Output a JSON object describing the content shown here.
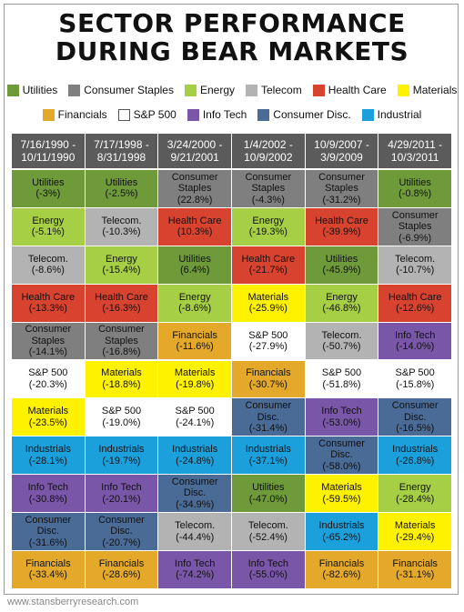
{
  "title_line1": "SECTOR PERFORMANCE",
  "title_line2": "DURING BEAR MARKETS",
  "footer": "www.stansberryresearch.com",
  "sectors": {
    "Utilities": "#6e9a3a",
    "Consumer Staples": "#7f7f7f",
    "Energy": "#a6cf45",
    "Telecom": "#b3b3b3",
    "Health Care": "#d8432f",
    "Materials": "#fff200",
    "Financials": "#e4a92a",
    "S&P 500": "#ffffff",
    "Info Tech": "#7a56a8",
    "Consumer Disc.": "#4a6b96",
    "Industrial": "#1ba0dc"
  },
  "legend_rows": [
    [
      "Utilities",
      "Consumer Staples",
      "Energy",
      "Telecom",
      "Health Care",
      "Materials"
    ],
    [
      "Financials",
      "S&P 500",
      "Info Tech",
      "Consumer Disc.",
      "Industrial"
    ]
  ],
  "chart_data": {
    "type": "table",
    "title": "SECTOR PERFORMANCE DURING BEAR MARKETS",
    "periods": [
      [
        "7/16/1990 -",
        "10/11/1990"
      ],
      [
        "7/17/1998 -",
        "8/31/1998"
      ],
      [
        "3/24/2000 -",
        "9/21/2001"
      ],
      [
        "1/4/2002 -",
        "10/9/2002"
      ],
      [
        "10/9/2007 -",
        "3/9/2009"
      ],
      [
        "4/29/2011 -",
        "10/3/2011"
      ]
    ],
    "columns": [
      [
        {
          "label": [
            "Utilities"
          ],
          "sector": "Utilities",
          "value": "(-3%)"
        },
        {
          "label": [
            "Energy"
          ],
          "sector": "Energy",
          "value": "(-5.1%)"
        },
        {
          "label": [
            "Telecom."
          ],
          "sector": "Telecom",
          "value": "(-8.6%)"
        },
        {
          "label": [
            "Health Care"
          ],
          "sector": "Health Care",
          "value": "(-13.3%)"
        },
        {
          "label": [
            "Consumer",
            "Staples"
          ],
          "sector": "Consumer Staples",
          "value": "(-14.1%)"
        },
        {
          "label": [
            "S&P 500"
          ],
          "sector": "S&P 500",
          "value": "(-20.3%)"
        },
        {
          "label": [
            "Materials"
          ],
          "sector": "Materials",
          "value": "(-23.5%)"
        },
        {
          "label": [
            "Industrials"
          ],
          "sector": "Industrial",
          "value": "(-28.1%)"
        },
        {
          "label": [
            "Info Tech"
          ],
          "sector": "Info Tech",
          "value": "(-30.8%)"
        },
        {
          "label": [
            "Consumer",
            "Disc."
          ],
          "sector": "Consumer Disc.",
          "value": "(-31.6%)"
        },
        {
          "label": [
            "Financials"
          ],
          "sector": "Financials",
          "value": "(-33.4%)"
        }
      ],
      [
        {
          "label": [
            "Utilities"
          ],
          "sector": "Utilities",
          "value": "(-2.5%)"
        },
        {
          "label": [
            "Telecom."
          ],
          "sector": "Telecom",
          "value": "(-10.3%)"
        },
        {
          "label": [
            "Energy"
          ],
          "sector": "Energy",
          "value": "(-15.4%)"
        },
        {
          "label": [
            "Health Care"
          ],
          "sector": "Health Care",
          "value": "(-16.3%)"
        },
        {
          "label": [
            "Consumer",
            "Staples"
          ],
          "sector": "Consumer Staples",
          "value": "(-16.8%)"
        },
        {
          "label": [
            "Materials"
          ],
          "sector": "Materials",
          "value": "(-18.8%)"
        },
        {
          "label": [
            "S&P 500"
          ],
          "sector": "S&P 500",
          "value": "(-19.0%)"
        },
        {
          "label": [
            "Industrials"
          ],
          "sector": "Industrial",
          "value": "(-19.7%)"
        },
        {
          "label": [
            "Info Tech"
          ],
          "sector": "Info Tech",
          "value": "(-20.1%)"
        },
        {
          "label": [
            "Consumer",
            "Disc."
          ],
          "sector": "Consumer Disc.",
          "value": "(-20.7%)"
        },
        {
          "label": [
            "Financials"
          ],
          "sector": "Financials",
          "value": "(-28.6%)"
        }
      ],
      [
        {
          "label": [
            "Consumer",
            "Staples"
          ],
          "sector": "Consumer Staples",
          "value": "(22.8%)"
        },
        {
          "label": [
            "Health Care"
          ],
          "sector": "Health Care",
          "value": "(10.3%)"
        },
        {
          "label": [
            "Utilities"
          ],
          "sector": "Utilities",
          "value": "(6.4%)"
        },
        {
          "label": [
            "Energy"
          ],
          "sector": "Energy",
          "value": "(-8.6%)"
        },
        {
          "label": [
            "Financials"
          ],
          "sector": "Financials",
          "value": "(-11.6%)"
        },
        {
          "label": [
            "Materials"
          ],
          "sector": "Materials",
          "value": "(-19.8%)"
        },
        {
          "label": [
            "S&P 500"
          ],
          "sector": "S&P 500",
          "value": "(-24.1%)"
        },
        {
          "label": [
            "Industrials"
          ],
          "sector": "Industrial",
          "value": "(-24.8%)"
        },
        {
          "label": [
            "Consumer",
            "Disc."
          ],
          "sector": "Consumer Disc.",
          "value": "(-34.9%)"
        },
        {
          "label": [
            "Telecom."
          ],
          "sector": "Telecom",
          "value": "(-44.4%)"
        },
        {
          "label": [
            "Info Tech"
          ],
          "sector": "Info Tech",
          "value": "(-74.2%)"
        }
      ],
      [
        {
          "label": [
            "Consumer",
            "Staples"
          ],
          "sector": "Consumer Staples",
          "value": "(-4.3%)"
        },
        {
          "label": [
            "Energy"
          ],
          "sector": "Energy",
          "value": "(-19.3%)"
        },
        {
          "label": [
            "Health Care"
          ],
          "sector": "Health Care",
          "value": "(-21.7%)"
        },
        {
          "label": [
            "Materials"
          ],
          "sector": "Materials",
          "value": "(-25.9%)"
        },
        {
          "label": [
            "S&P 500"
          ],
          "sector": "S&P 500",
          "value": "(-27.9%)"
        },
        {
          "label": [
            "Financials"
          ],
          "sector": "Financials",
          "value": "(-30.7%)"
        },
        {
          "label": [
            "Consumer",
            "Disc."
          ],
          "sector": "Consumer Disc.",
          "value": "(-31.4%)"
        },
        {
          "label": [
            "Industrials"
          ],
          "sector": "Industrial",
          "value": "(-37.1%)"
        },
        {
          "label": [
            "Utilities"
          ],
          "sector": "Utilities",
          "value": "(-47.0%)"
        },
        {
          "label": [
            "Telecom."
          ],
          "sector": "Telecom",
          "value": "(-52.4%)"
        },
        {
          "label": [
            "Info Tech"
          ],
          "sector": "Info Tech",
          "value": "(-55.0%)"
        }
      ],
      [
        {
          "label": [
            "Consumer",
            "Staples"
          ],
          "sector": "Consumer Staples",
          "value": "(-31.2%)"
        },
        {
          "label": [
            "Health Care"
          ],
          "sector": "Health Care",
          "value": "(-39.9%)"
        },
        {
          "label": [
            "Utilities"
          ],
          "sector": "Utilities",
          "value": "(-45.9%)"
        },
        {
          "label": [
            "Energy"
          ],
          "sector": "Energy",
          "value": "(-46.8%)"
        },
        {
          "label": [
            "Telecom."
          ],
          "sector": "Telecom",
          "value": "(-50.7%)"
        },
        {
          "label": [
            "S&P 500"
          ],
          "sector": "S&P 500",
          "value": "(-51.8%)"
        },
        {
          "label": [
            "Info Tech"
          ],
          "sector": "Info Tech",
          "value": "(-53.0%)"
        },
        {
          "label": [
            "Consumer",
            "Disc."
          ],
          "sector": "Consumer Disc.",
          "value": "(-58.0%)"
        },
        {
          "label": [
            "Materials"
          ],
          "sector": "Materials",
          "value": "(-59.5%)"
        },
        {
          "label": [
            "Industrials"
          ],
          "sector": "Industrial",
          "value": "(-65.2%)"
        },
        {
          "label": [
            "Financials"
          ],
          "sector": "Financials",
          "value": "(-82.6%)"
        }
      ],
      [
        {
          "label": [
            "Utilities"
          ],
          "sector": "Utilities",
          "value": "(-0.8%)"
        },
        {
          "label": [
            "Consumer",
            "Staples"
          ],
          "sector": "Consumer Staples",
          "value": "(-6.9%)"
        },
        {
          "label": [
            "Telecom."
          ],
          "sector": "Telecom",
          "value": "(-10.7%)"
        },
        {
          "label": [
            "Health Care"
          ],
          "sector": "Health Care",
          "value": "(-12.6%)"
        },
        {
          "label": [
            "Info Tech"
          ],
          "sector": "Info Tech",
          "value": "(-14.0%)"
        },
        {
          "label": [
            "S&P 500"
          ],
          "sector": "S&P 500",
          "value": "(-15.8%)"
        },
        {
          "label": [
            "Consumer",
            "Disc."
          ],
          "sector": "Consumer Disc.",
          "value": "(-16.5%)"
        },
        {
          "label": [
            "Industrials"
          ],
          "sector": "Industrial",
          "value": "(-26.8%)"
        },
        {
          "label": [
            "Energy"
          ],
          "sector": "Energy",
          "value": "(-28.4%)"
        },
        {
          "label": [
            "Materials"
          ],
          "sector": "Materials",
          "value": "(-29.4%)"
        },
        {
          "label": [
            "Financials"
          ],
          "sector": "Financials",
          "value": "(-31.1%)"
        }
      ]
    ]
  }
}
